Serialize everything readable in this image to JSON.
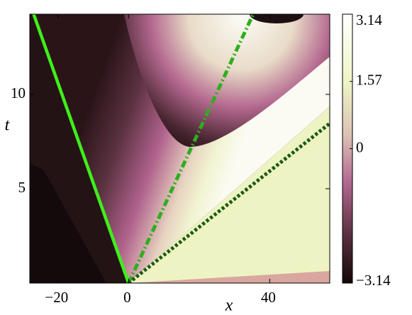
{
  "chart_data": {
    "type": "contour",
    "xlabel": "x",
    "ylabel": "t",
    "xlim": [
      -28,
      57
    ],
    "ylim": [
      0,
      14.25
    ],
    "xticks": [
      {
        "value": -20,
        "label": "−20"
      },
      0,
      40
    ],
    "yticks": [
      5,
      10
    ],
    "colorbar": {
      "clim": [
        -3.14,
        3.14
      ],
      "ticks": [
        {
          "value": -3.14,
          "label": "−3.14"
        },
        0,
        1.57,
        3.14
      ]
    },
    "lines": [
      {
        "color": "#3ef01a",
        "style": "solid",
        "x": [
          -26.9,
          0
        ],
        "y": [
          14.25,
          0
        ]
      },
      {
        "color": "#2fae1e",
        "style": "dashdot",
        "x": [
          0,
          35.3
        ],
        "y": [
          0,
          14.25
        ]
      },
      {
        "color": "#1c5a12",
        "style": "dotted",
        "x": [
          0,
          57
        ],
        "y": [
          0,
          8.46
        ]
      }
    ]
  }
}
